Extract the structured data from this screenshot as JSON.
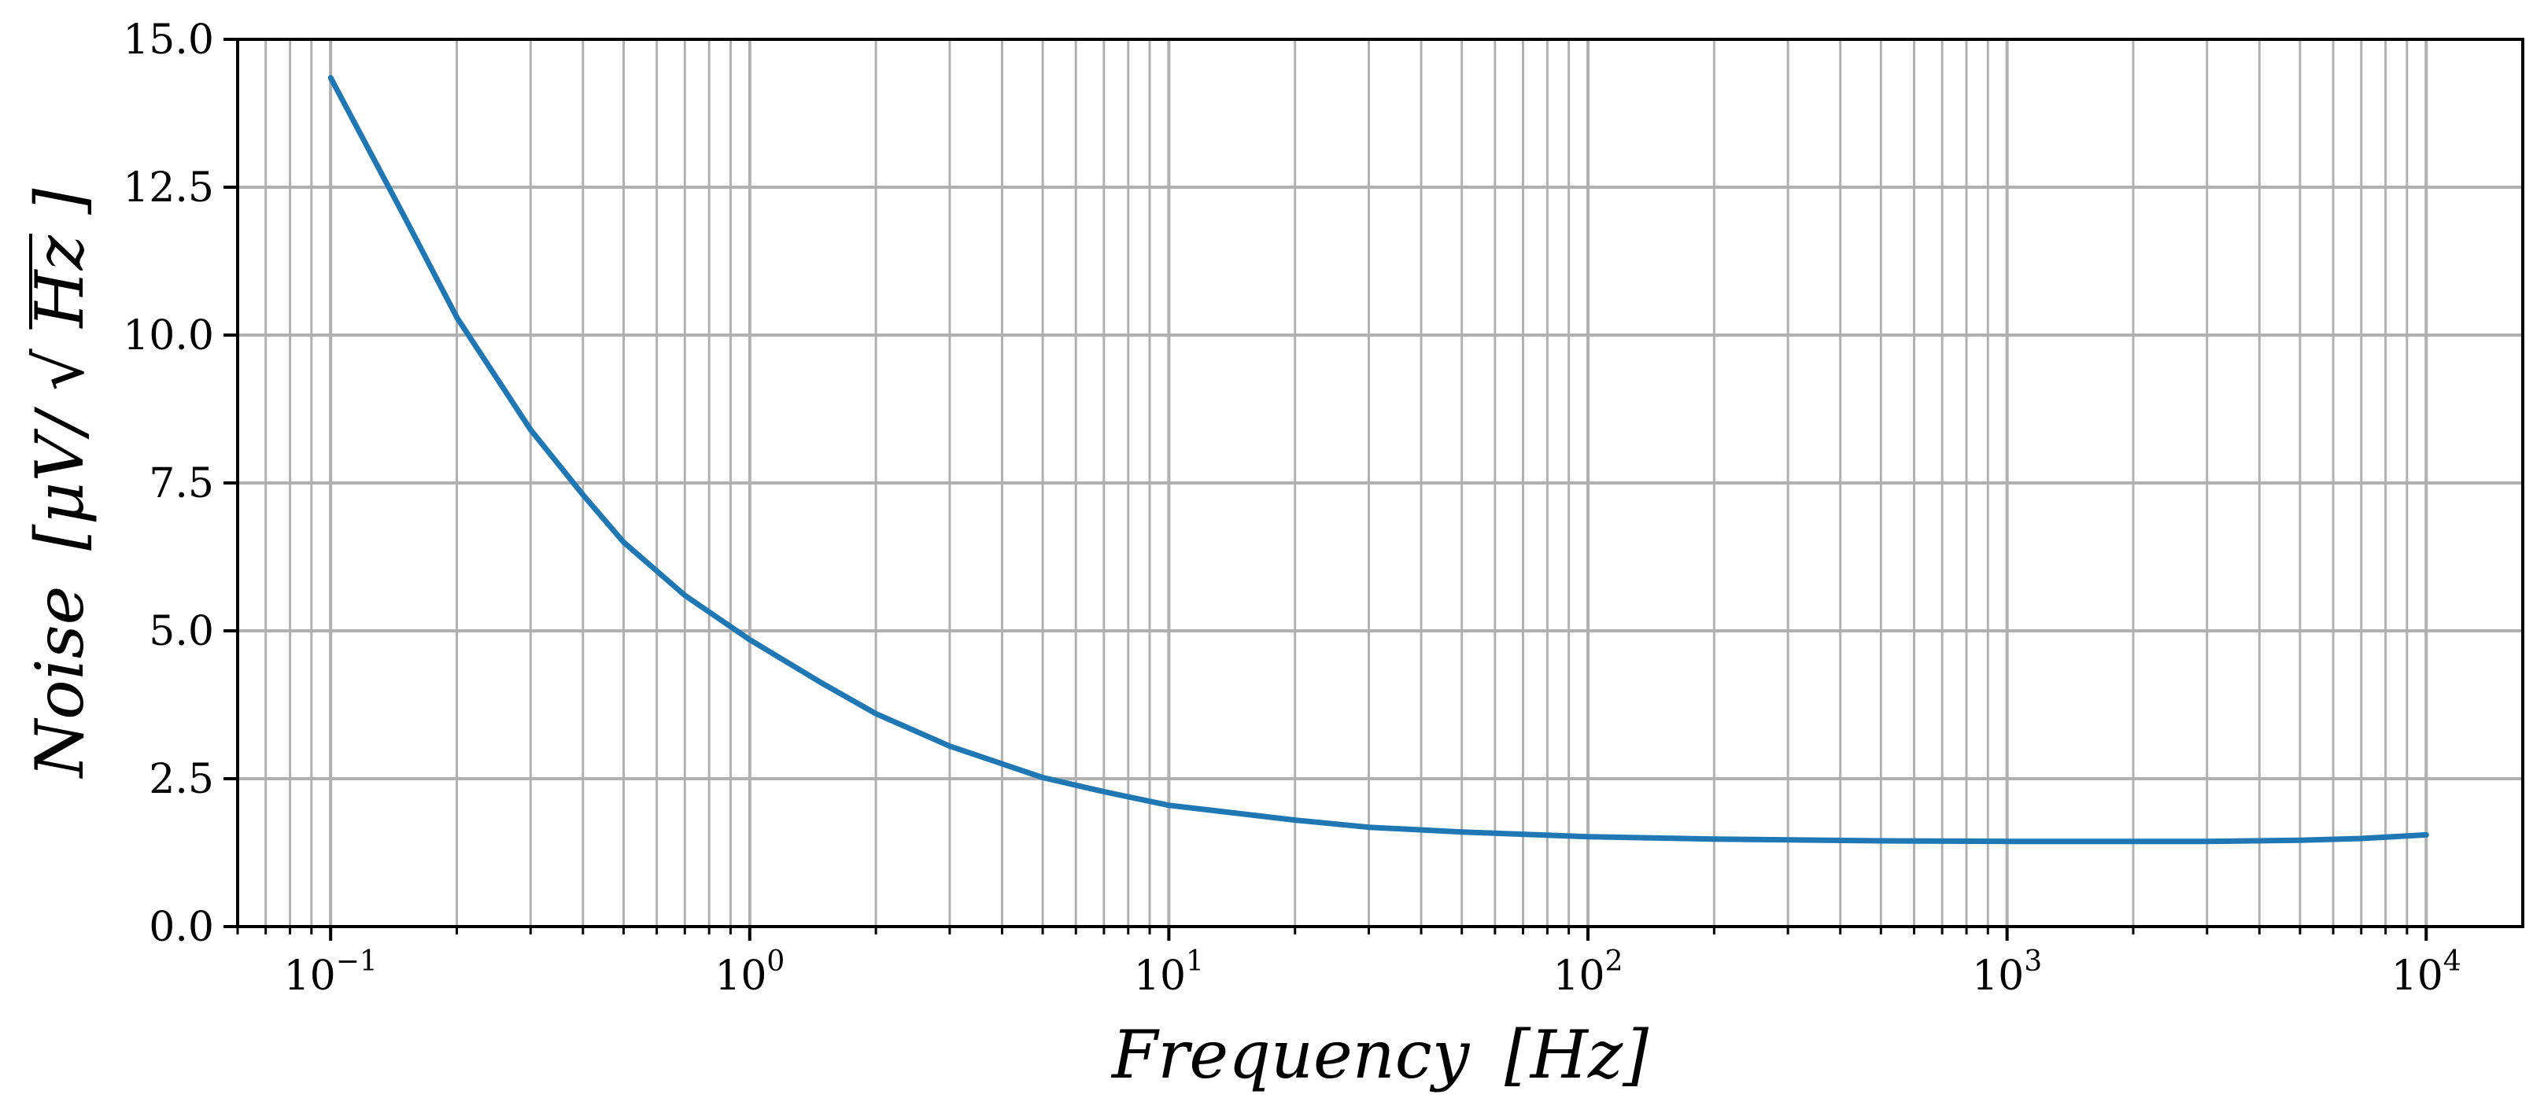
{
  "chart_data": {
    "type": "line",
    "title": "",
    "xlabel": "Frequency [Hz]",
    "xlabel_parts": {
      "name": "Frequency",
      "unit": "[Hz]"
    },
    "ylabel": "Noise [μV/√Hz]",
    "ylabel_parts": {
      "name": "Noise",
      "unit_open": "[μV/",
      "sqrt_symbol": "√",
      "sqrt_arg": "Hz",
      "unit_close": "]"
    },
    "xscale": "log",
    "xlim": [
      0.06,
      17000
    ],
    "ylim": [
      0,
      15
    ],
    "grid": true,
    "x_major_ticks": [
      {
        "value": 0.1,
        "base": "10",
        "exp": "−1"
      },
      {
        "value": 1,
        "base": "10",
        "exp": "0"
      },
      {
        "value": 10,
        "base": "10",
        "exp": "1"
      },
      {
        "value": 100,
        "base": "10",
        "exp": "2"
      },
      {
        "value": 1000,
        "base": "10",
        "exp": "3"
      },
      {
        "value": 10000,
        "base": "10",
        "exp": "4"
      }
    ],
    "y_ticks": [
      {
        "value": 0,
        "label": "0.0"
      },
      {
        "value": 2.5,
        "label": "2.5"
      },
      {
        "value": 5,
        "label": "5.0"
      },
      {
        "value": 7.5,
        "label": "7.5"
      },
      {
        "value": 10,
        "label": "10.0"
      },
      {
        "value": 12.5,
        "label": "12.5"
      },
      {
        "value": 15,
        "label": "15.0"
      }
    ],
    "series": [
      {
        "name": "noise",
        "color": "#1f77b4",
        "x": [
          0.1,
          0.15,
          0.2,
          0.3,
          0.4,
          0.5,
          0.7,
          1,
          1.5,
          2,
          3,
          5,
          7,
          10,
          20,
          30,
          50,
          100,
          200,
          500,
          1000,
          2000,
          3000,
          5000,
          7000,
          10000
        ],
        "y": [
          14.35,
          12.0,
          10.3,
          8.4,
          7.3,
          6.5,
          5.6,
          4.85,
          4.1,
          3.6,
          3.05,
          2.52,
          2.28,
          2.05,
          1.8,
          1.68,
          1.6,
          1.52,
          1.48,
          1.45,
          1.44,
          1.44,
          1.44,
          1.46,
          1.49,
          1.55
        ]
      }
    ],
    "colors": {
      "line": "#1f77b4",
      "grid": "#b0b0b0",
      "axes": "#000000"
    }
  }
}
